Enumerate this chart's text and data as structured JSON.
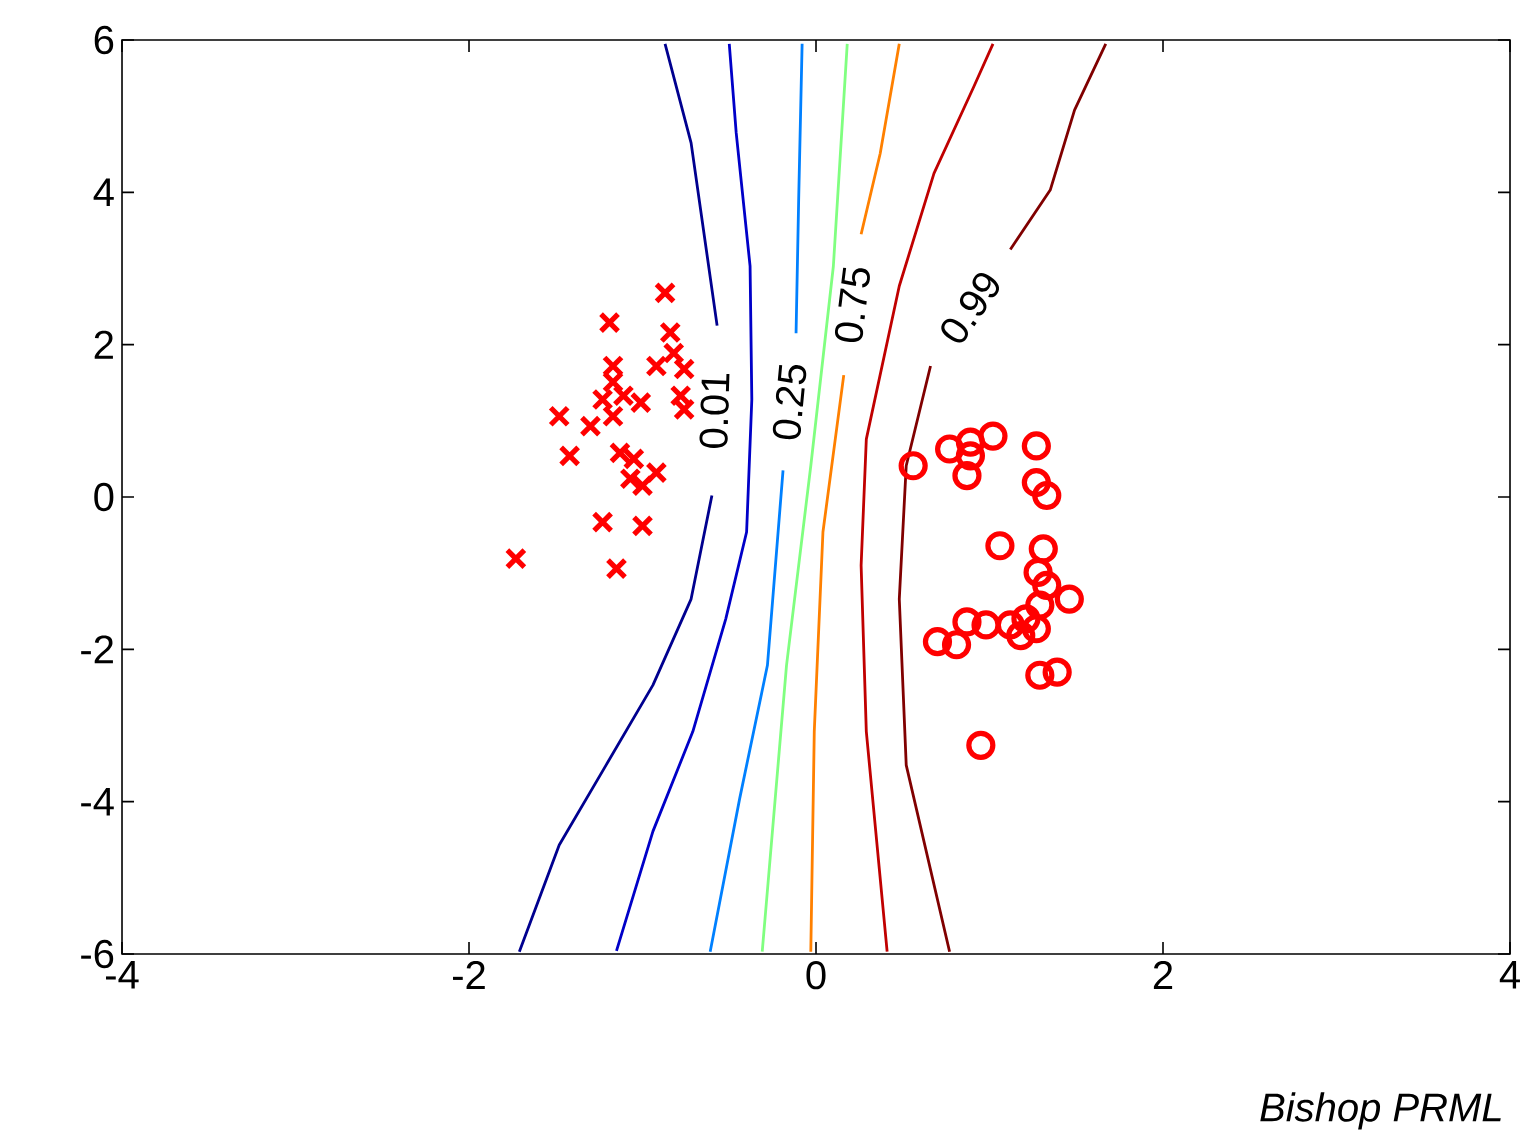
{
  "chart_data": {
    "type": "scatter",
    "xlim": [
      -4,
      4
    ],
    "ylim": [
      -6,
      6
    ],
    "xticks": [
      -4,
      -2,
      0,
      2,
      4
    ],
    "yticks": [
      -6,
      -4,
      -2,
      0,
      2,
      4,
      6
    ],
    "annotations": [
      "Bishop PRML"
    ],
    "series": [
      {
        "marker": "cross",
        "color": "#ff0000",
        "x": [
          -0.87,
          -1.19,
          -0.84,
          -0.82,
          -0.92,
          -1.17,
          -0.76,
          -1.17,
          -1.11,
          -0.78,
          -1.48,
          -1.23,
          -1.01,
          -1.3,
          -0.76,
          -1.17,
          -1.42,
          -1.13,
          -1.05,
          -0.92,
          -1.07,
          -1.0,
          -1.23,
          -1.0,
          -1.73,
          -1.15
        ],
        "values": [
          2.68,
          2.29,
          2.16,
          1.89,
          1.72,
          1.72,
          1.68,
          1.51,
          1.33,
          1.33,
          1.06,
          1.28,
          1.24,
          0.93,
          1.15,
          1.06,
          0.54,
          0.58,
          0.5,
          0.32,
          0.24,
          0.15,
          -0.33,
          -0.38,
          -0.81,
          -0.94
        ]
      },
      {
        "marker": "circle",
        "color": "#ff0000",
        "x": [
          0.56,
          0.77,
          0.89,
          0.89,
          1.02,
          1.27,
          0.87,
          1.27,
          1.33,
          1.06,
          1.31,
          1.28,
          1.33,
          1.46,
          1.29,
          0.87,
          0.7,
          0.81,
          0.98,
          1.12,
          1.21,
          1.18,
          1.27,
          1.29,
          1.39,
          0.95
        ],
        "values": [
          0.41,
          0.63,
          0.72,
          0.54,
          0.8,
          0.67,
          0.28,
          0.19,
          0.02,
          -0.64,
          -0.68,
          -0.99,
          -1.16,
          -1.34,
          -1.42,
          -1.64,
          -1.9,
          -1.94,
          -1.68,
          -1.68,
          -1.6,
          -1.82,
          -1.73,
          -2.34,
          -2.3,
          -3.26
        ]
      },
      {
        "type": "line",
        "marker": "none",
        "name": "0.01",
        "color": "#00008f",
        "x": [
          -0.87,
          -0.72,
          -0.57,
          null,
          -0.6,
          -0.72,
          -0.94,
          -1.21,
          -1.48,
          -1.71
        ],
        "values": [
          5.95,
          4.65,
          2.25,
          null,
          0.02,
          -1.34,
          -2.47,
          -3.52,
          -4.57,
          -5.97
        ]
      },
      {
        "type": "line",
        "marker": "none",
        "color": "#0000c8",
        "x": [
          -0.5,
          -0.46,
          -0.38,
          -0.37,
          -0.4,
          -0.52,
          -0.71,
          -0.94,
          -1.15
        ],
        "values": [
          5.95,
          4.78,
          3.03,
          1.28,
          -0.46,
          -1.6,
          -3.08,
          -4.39,
          -5.96
        ]
      },
      {
        "type": "line",
        "marker": "none",
        "name": "0.25",
        "color": "#0080ff",
        "x": [
          -0.08,
          -0.1,
          -0.115,
          null,
          -0.19,
          -0.28,
          -0.44,
          -0.61
        ],
        "values": [
          5.95,
          3.9,
          2.15,
          null,
          0.35,
          -2.21,
          -3.96,
          -5.97
        ]
      },
      {
        "type": "line",
        "marker": "none",
        "color": "#80ff80",
        "x": [
          0.18,
          0.1,
          -0.03,
          -0.17,
          -0.31
        ],
        "values": [
          5.95,
          3.03,
          0.41,
          -2.21,
          -5.97
        ]
      },
      {
        "type": "line",
        "marker": "none",
        "name": "0.75",
        "color": "#ff8000",
        "x": [
          0.48,
          0.37,
          0.26,
          null,
          0.16,
          0.04,
          -0.01,
          -0.03
        ],
        "values": [
          5.95,
          4.51,
          3.45,
          null,
          1.6,
          -0.46,
          -3.08,
          -5.97
        ]
      },
      {
        "type": "line",
        "marker": "none",
        "color": "#c00000",
        "x": [
          1.02,
          0.91,
          0.68,
          0.48,
          0.29,
          0.26,
          0.29,
          0.41
        ],
        "values": [
          5.95,
          5.39,
          4.25,
          2.77,
          0.76,
          -0.9,
          -3.08,
          -5.97
        ]
      },
      {
        "type": "line",
        "marker": "none",
        "name": "0.99",
        "color": "#800000",
        "x": [
          1.67,
          1.49,
          1.35,
          1.12,
          null,
          0.66,
          0.52,
          0.48,
          0.52,
          0.77
        ],
        "values": [
          5.95,
          5.08,
          4.03,
          3.25,
          null,
          1.72,
          0.41,
          -1.34,
          -3.52,
          -5.97
        ]
      }
    ]
  }
}
